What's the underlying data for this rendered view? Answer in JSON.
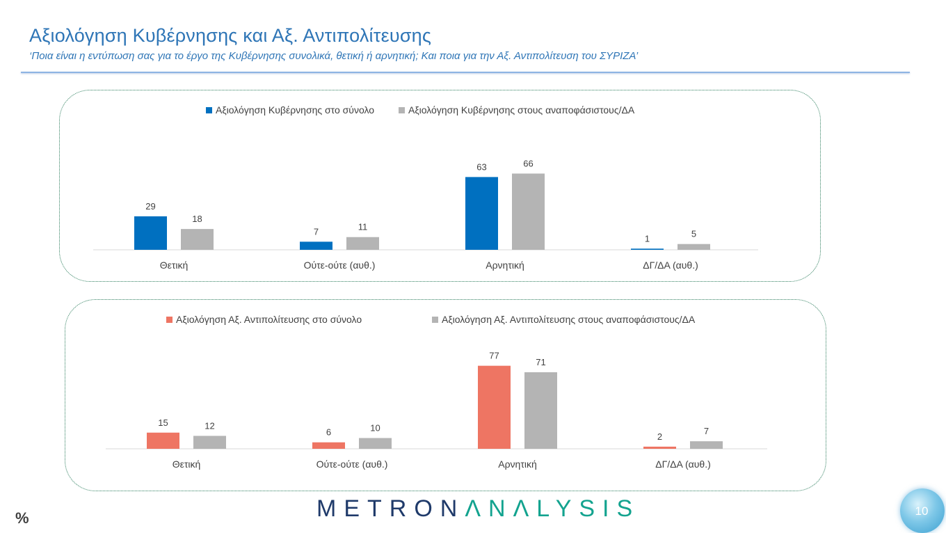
{
  "header": {
    "title": "Αξιολόγηση Κυβέρνησης και Αξ. Αντιπολίτευσης",
    "subtitle": "‘Ποια είναι η εντύπωση σας για το έργο της Κυβέρνησης συνολικά, θετική ή αρνητική; Και ποια για την Αξ. Αντιπολίτευση του ΣΥΡΙΖΑ’"
  },
  "footer": {
    "unit": "%",
    "logo_main": "METRON",
    "logo_tail": "ΛNΛLYSIS",
    "page_number": "10"
  },
  "chart_data": [
    {
      "type": "bar",
      "categories": [
        "Θετική",
        "Ούτε-ούτε (αυθ.)",
        "Αρνητική",
        "ΔΓ/ΔΑ (αυθ.)"
      ],
      "series": [
        {
          "name": "Αξιολόγηση Κυβέρνησης στο σύνολο",
          "values": [
            29,
            7,
            63,
            1
          ],
          "color": "#0070c0"
        },
        {
          "name": "Αξιολόγηση Κυβέρνησης στους αναποφάσιστους/ΔΑ",
          "values": [
            18,
            11,
            66,
            5
          ],
          "color": "#b4b4b4"
        }
      ],
      "legend": "top",
      "grid": false
    },
    {
      "type": "bar",
      "categories": [
        "Θετική",
        "Ούτε-ούτε (αυθ.)",
        "Αρνητική",
        "ΔΓ/ΔΑ (αυθ.)"
      ],
      "series": [
        {
          "name": "Αξιολόγηση Αξ. Αντιπολίτευσης στο σύνολο",
          "values": [
            15,
            6,
            77,
            2
          ],
          "color": "#ee7563"
        },
        {
          "name": "Αξιολόγηση Αξ. Αντιπολίτευσης στους αναποφάσιστους/ΔΑ",
          "values": [
            12,
            10,
            71,
            7
          ],
          "color": "#b4b4b4"
        }
      ],
      "legend": "top",
      "grid": false
    }
  ]
}
